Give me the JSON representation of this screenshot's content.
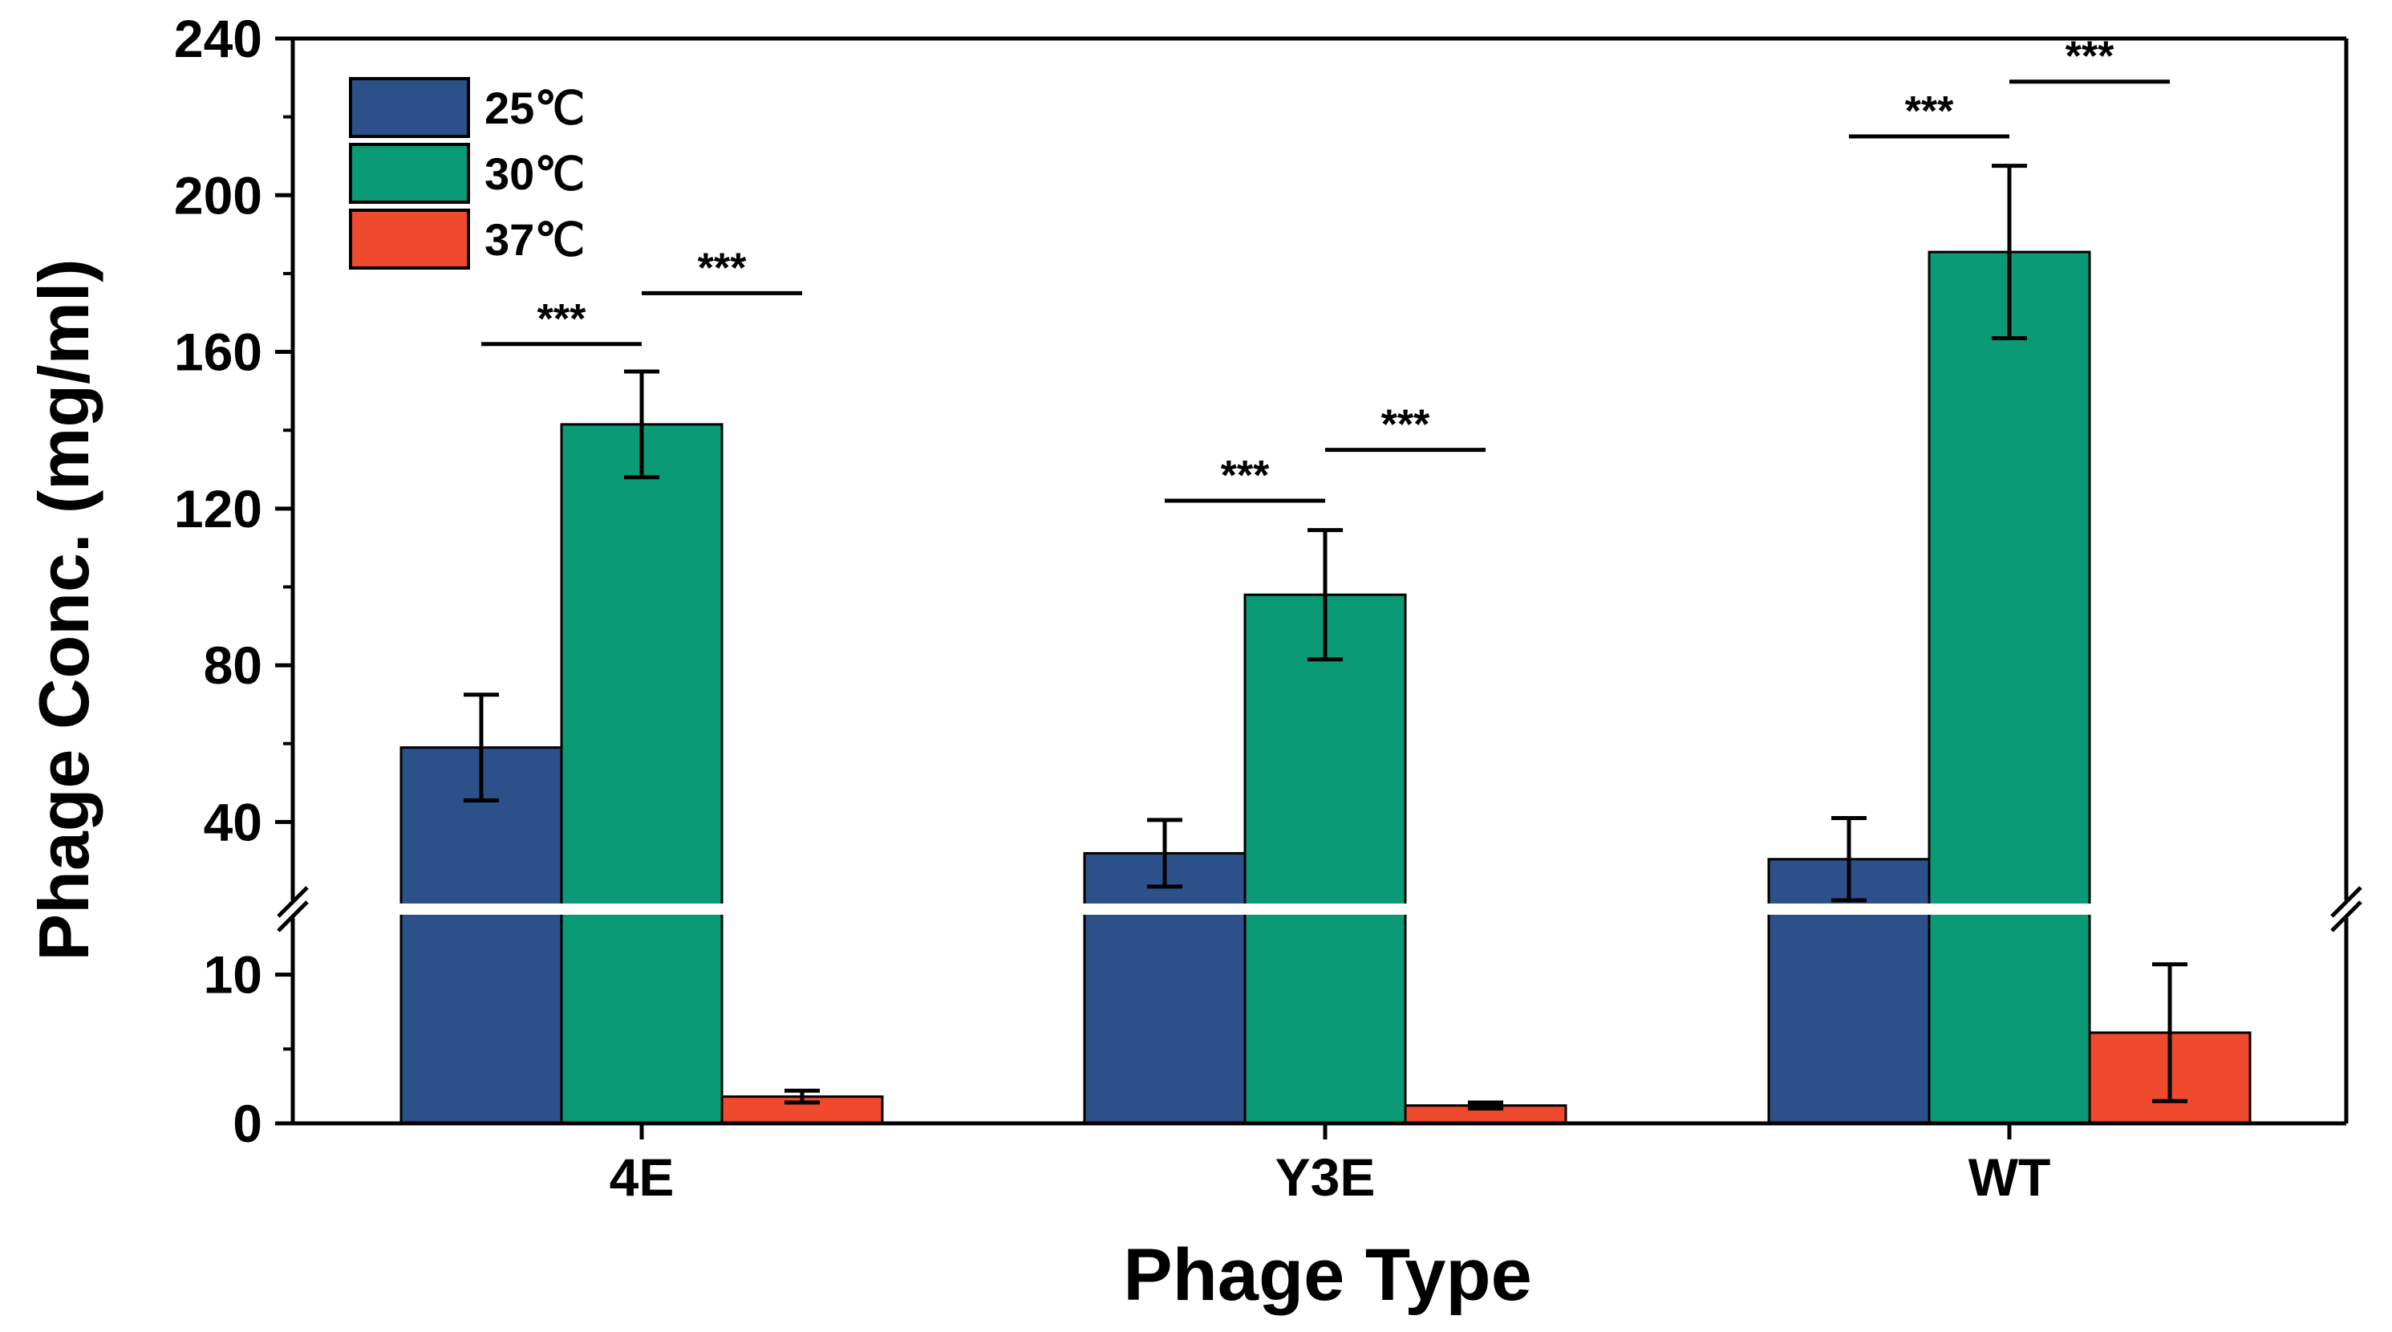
{
  "chart_data": {
    "type": "bar",
    "title": "",
    "xlabel": "Phage Type",
    "ylabel": "Phage Conc. (mg/ml)",
    "categories": [
      "4E",
      "Y3E",
      "WT"
    ],
    "series": [
      {
        "name": "25℃",
        "color": "#2C5089",
        "values": [
          59,
          32,
          30.5
        ],
        "errors": [
          13.5,
          8.5,
          10.5
        ]
      },
      {
        "name": "30℃",
        "color": "#0B9A76",
        "values": [
          141.5,
          98,
          185.5
        ],
        "errors": [
          13.5,
          16.5,
          22
        ]
      },
      {
        "name": "37℃",
        "color": "#F04A2E",
        "values": [
          1.8,
          1.2,
          6.1
        ],
        "errors": [
          0.4,
          0.2,
          4.6
        ]
      }
    ],
    "axis_break": {
      "lower_range": [
        0,
        15
      ],
      "upper_range": [
        20,
        240
      ]
    },
    "yticks_upper": [
      "40",
      "80",
      "120",
      "160",
      "200",
      "240"
    ],
    "yticks_lower": [
      "0",
      "10"
    ],
    "significance": [
      {
        "group": 0,
        "from": 0,
        "to": 1,
        "label": "***",
        "y": 162
      },
      {
        "group": 0,
        "from": 1,
        "to": 2,
        "label": "***",
        "y": 175
      },
      {
        "group": 1,
        "from": 0,
        "to": 1,
        "label": "***",
        "y": 122
      },
      {
        "group": 1,
        "from": 1,
        "to": 2,
        "label": "***",
        "y": 135
      },
      {
        "group": 2,
        "from": 0,
        "to": 1,
        "label": "***",
        "y": 215
      },
      {
        "group": 2,
        "from": 1,
        "to": 2,
        "label": "***",
        "y": 229
      }
    ],
    "legend_position": "top-left",
    "grid": false
  }
}
